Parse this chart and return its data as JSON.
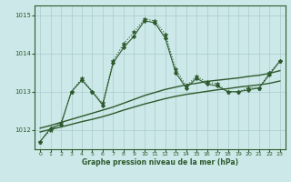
{
  "xlabel": "Graphe pression niveau de la mer (hPa)",
  "background_color": "#cce8e8",
  "grid_color": "#aacccc",
  "line_color": "#2d5a2d",
  "x": [
    0,
    1,
    2,
    3,
    4,
    5,
    6,
    7,
    8,
    9,
    10,
    11,
    12,
    13,
    14,
    15,
    16,
    17,
    18,
    19,
    20,
    21,
    22,
    23
  ],
  "y_dotted": [
    1011.7,
    1012.0,
    1012.2,
    1013.0,
    1013.35,
    1013.0,
    1012.7,
    1013.8,
    1014.25,
    1014.55,
    1014.9,
    1014.85,
    1014.5,
    1013.6,
    1013.15,
    1013.4,
    1013.25,
    1013.2,
    1013.0,
    1013.0,
    1013.1,
    1013.1,
    1013.5,
    1013.8
  ],
  "y_solid": [
    1011.7,
    1012.05,
    1012.15,
    1013.0,
    1013.3,
    1013.0,
    1012.65,
    1013.75,
    1014.15,
    1014.45,
    1014.85,
    1014.8,
    1014.4,
    1013.5,
    1013.1,
    1013.35,
    1013.2,
    1013.15,
    1013.0,
    1013.0,
    1013.05,
    1013.1,
    1013.45,
    1013.8
  ],
  "y_straight_low": [
    1011.95,
    1012.02,
    1012.08,
    1012.15,
    1012.22,
    1012.28,
    1012.35,
    1012.43,
    1012.52,
    1012.6,
    1012.68,
    1012.75,
    1012.82,
    1012.88,
    1012.93,
    1012.97,
    1013.01,
    1013.05,
    1013.08,
    1013.12,
    1013.15,
    1013.18,
    1013.22,
    1013.28
  ],
  "y_straight_high": [
    1012.05,
    1012.12,
    1012.2,
    1012.28,
    1012.36,
    1012.44,
    1012.52,
    1012.6,
    1012.7,
    1012.8,
    1012.9,
    1012.98,
    1013.06,
    1013.12,
    1013.18,
    1013.22,
    1013.27,
    1013.3,
    1013.33,
    1013.36,
    1013.4,
    1013.43,
    1013.48,
    1013.55
  ],
  "ylim": [
    1011.5,
    1015.25
  ],
  "yticks": [
    1012,
    1013,
    1014,
    1015
  ],
  "xticks": [
    0,
    1,
    2,
    3,
    4,
    5,
    6,
    7,
    8,
    9,
    10,
    11,
    12,
    13,
    14,
    15,
    16,
    17,
    18,
    19,
    20,
    21,
    22,
    23
  ]
}
